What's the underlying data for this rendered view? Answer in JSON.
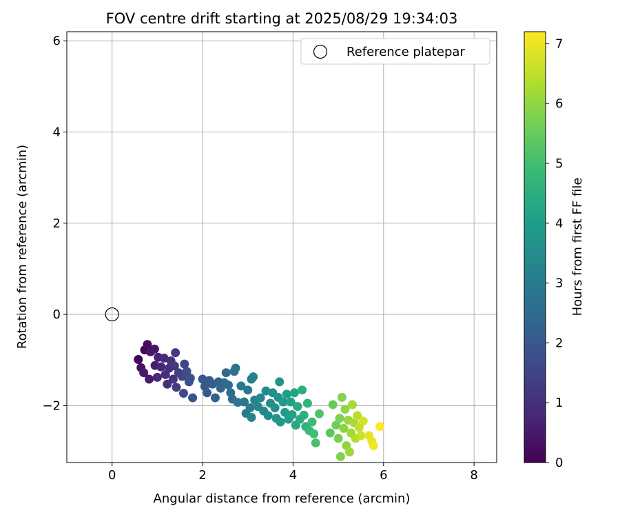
{
  "chart_data": {
    "type": "scatter",
    "title": "FOV centre drift starting at 2025/08/29 19:34:03",
    "xlabel": "Angular distance from reference (arcmin)",
    "ylabel": "Rotation from reference (arcmin)",
    "xlim": [
      -1.0,
      8.5
    ],
    "ylim": [
      -3.25,
      6.2
    ],
    "xticks": [
      0,
      2,
      4,
      6,
      8
    ],
    "xtick_labels": [
      "0",
      "2",
      "4",
      "6",
      "8"
    ],
    "yticks": [
      -2,
      0,
      2,
      4,
      6
    ],
    "ytick_labels": [
      "−2",
      "0",
      "2",
      "4",
      "6"
    ],
    "grid": true,
    "legend": {
      "position": "top-right",
      "label": "Reference platepar"
    },
    "reference_point": {
      "x": 0,
      "y": 0
    },
    "colorbar": {
      "label": "Hours from first FF file",
      "range": [
        0,
        7.2
      ],
      "ticks": [
        0,
        1,
        2,
        3,
        4,
        5,
        6,
        7
      ],
      "tick_labels": [
        "0",
        "1",
        "2",
        "3",
        "4",
        "5",
        "6",
        "7"
      ],
      "colormap": [
        "#440154",
        "#482878",
        "#3e4989",
        "#31688e",
        "#26828e",
        "#1f9e89",
        "#35b779",
        "#6ece58",
        "#b5de2b",
        "#fde725"
      ]
    },
    "series": [
      {
        "name": "FOV centre",
        "points": [
          {
            "x": 0.58,
            "y": -0.99,
            "c": 0.05
          },
          {
            "x": 0.72,
            "y": -0.78,
            "c": 0.15
          },
          {
            "x": 0.78,
            "y": -0.66,
            "c": 0.25
          },
          {
            "x": 0.64,
            "y": -1.17,
            "c": 0.3
          },
          {
            "x": 0.85,
            "y": -0.82,
            "c": 0.4
          },
          {
            "x": 0.94,
            "y": -0.76,
            "c": 0.45
          },
          {
            "x": 0.7,
            "y": -1.28,
            "c": 0.5
          },
          {
            "x": 0.82,
            "y": -1.42,
            "c": 0.55
          },
          {
            "x": 0.95,
            "y": -1.12,
            "c": 0.6
          },
          {
            "x": 1.02,
            "y": -0.94,
            "c": 0.7
          },
          {
            "x": 1.08,
            "y": -1.15,
            "c": 0.75
          },
          {
            "x": 1.0,
            "y": -1.38,
            "c": 0.8
          },
          {
            "x": 1.15,
            "y": -0.96,
            "c": 0.85
          },
          {
            "x": 1.18,
            "y": -1.32,
            "c": 0.9
          },
          {
            "x": 1.22,
            "y": -1.53,
            "c": 0.95
          },
          {
            "x": 1.26,
            "y": -1.18,
            "c": 1.0
          },
          {
            "x": 1.3,
            "y": -1.02,
            "c": 1.05
          },
          {
            "x": 1.35,
            "y": -1.42,
            "c": 1.1
          },
          {
            "x": 1.4,
            "y": -0.84,
            "c": 1.2
          },
          {
            "x": 1.38,
            "y": -1.13,
            "c": 1.25
          },
          {
            "x": 1.42,
            "y": -1.6,
            "c": 1.3
          },
          {
            "x": 1.47,
            "y": -1.28,
            "c": 1.4
          },
          {
            "x": 1.55,
            "y": -1.36,
            "c": 1.5
          },
          {
            "x": 1.6,
            "y": -1.09,
            "c": 1.55
          },
          {
            "x": 1.58,
            "y": -1.73,
            "c": 1.6
          },
          {
            "x": 1.65,
            "y": -1.25,
            "c": 1.7
          },
          {
            "x": 1.7,
            "y": -1.48,
            "c": 1.75
          },
          {
            "x": 1.73,
            "y": -1.4,
            "c": 1.8
          },
          {
            "x": 1.78,
            "y": -1.83,
            "c": 1.85
          },
          {
            "x": 2.0,
            "y": -1.42,
            "c": 1.95
          },
          {
            "x": 2.05,
            "y": -1.58,
            "c": 2.0
          },
          {
            "x": 2.1,
            "y": -1.72,
            "c": 2.05
          },
          {
            "x": 2.15,
            "y": -1.45,
            "c": 2.1
          },
          {
            "x": 2.22,
            "y": -1.53,
            "c": 2.15
          },
          {
            "x": 2.28,
            "y": -1.83,
            "c": 2.2
          },
          {
            "x": 2.35,
            "y": -1.48,
            "c": 2.25
          },
          {
            "x": 2.4,
            "y": -1.62,
            "c": 2.3
          },
          {
            "x": 2.48,
            "y": -1.5,
            "c": 2.35
          },
          {
            "x": 2.52,
            "y": -1.28,
            "c": 2.45
          },
          {
            "x": 2.57,
            "y": -1.55,
            "c": 2.5
          },
          {
            "x": 2.62,
            "y": -1.72,
            "c": 2.55
          },
          {
            "x": 2.66,
            "y": -1.86,
            "c": 2.6
          },
          {
            "x": 2.7,
            "y": -1.25,
            "c": 2.7
          },
          {
            "x": 2.73,
            "y": -1.18,
            "c": 2.75
          },
          {
            "x": 2.78,
            "y": -1.93,
            "c": 2.8
          },
          {
            "x": 2.85,
            "y": -1.57,
            "c": 2.85
          },
          {
            "x": 2.92,
            "y": -1.92,
            "c": 2.9
          },
          {
            "x": 2.96,
            "y": -2.17,
            "c": 2.95
          },
          {
            "x": 3.0,
            "y": -1.66,
            "c": 3.0
          },
          {
            "x": 3.05,
            "y": -2.05,
            "c": 3.05
          },
          {
            "x": 3.08,
            "y": -1.42,
            "c": 3.1
          },
          {
            "x": 3.12,
            "y": -1.37,
            "c": 3.15
          },
          {
            "x": 3.15,
            "y": -1.88,
            "c": 3.2
          },
          {
            "x": 3.08,
            "y": -2.26,
            "c": 3.25
          },
          {
            "x": 3.22,
            "y": -2.02,
            "c": 3.3
          },
          {
            "x": 3.28,
            "y": -1.83,
            "c": 3.35
          },
          {
            "x": 3.35,
            "y": -2.12,
            "c": 3.4
          },
          {
            "x": 3.4,
            "y": -1.68,
            "c": 3.45
          },
          {
            "x": 3.45,
            "y": -2.22,
            "c": 3.5
          },
          {
            "x": 3.5,
            "y": -1.95,
            "c": 3.55
          },
          {
            "x": 3.55,
            "y": -1.72,
            "c": 3.6
          },
          {
            "x": 3.6,
            "y": -2.05,
            "c": 3.65
          },
          {
            "x": 3.63,
            "y": -2.28,
            "c": 3.7
          },
          {
            "x": 3.67,
            "y": -1.82,
            "c": 3.75
          },
          {
            "x": 3.7,
            "y": -1.48,
            "c": 3.8
          },
          {
            "x": 3.72,
            "y": -2.36,
            "c": 3.85
          },
          {
            "x": 3.78,
            "y": -1.92,
            "c": 3.9
          },
          {
            "x": 3.82,
            "y": -2.15,
            "c": 3.95
          },
          {
            "x": 3.86,
            "y": -1.75,
            "c": 4.0
          },
          {
            "x": 3.9,
            "y": -2.3,
            "c": 4.05
          },
          {
            "x": 3.95,
            "y": -1.92,
            "c": 4.1
          },
          {
            "x": 3.98,
            "y": -2.2,
            "c": 4.15
          },
          {
            "x": 4.03,
            "y": -1.72,
            "c": 4.2
          },
          {
            "x": 4.06,
            "y": -2.43,
            "c": 4.3
          },
          {
            "x": 4.1,
            "y": -2.02,
            "c": 4.35
          },
          {
            "x": 4.15,
            "y": -2.3,
            "c": 4.4
          },
          {
            "x": 4.2,
            "y": -1.66,
            "c": 4.5
          },
          {
            "x": 4.24,
            "y": -2.21,
            "c": 4.55
          },
          {
            "x": 4.28,
            "y": -2.46,
            "c": 4.6
          },
          {
            "x": 4.32,
            "y": -1.95,
            "c": 4.7
          },
          {
            "x": 4.36,
            "y": -2.55,
            "c": 4.8
          },
          {
            "x": 4.42,
            "y": -2.36,
            "c": 4.9
          },
          {
            "x": 4.46,
            "y": -2.62,
            "c": 5.0
          },
          {
            "x": 4.5,
            "y": -2.82,
            "c": 5.1
          },
          {
            "x": 4.58,
            "y": -2.18,
            "c": 5.2
          },
          {
            "x": 4.82,
            "y": -2.6,
            "c": 5.35
          },
          {
            "x": 4.88,
            "y": -1.98,
            "c": 5.5
          },
          {
            "x": 4.95,
            "y": -2.43,
            "c": 5.6
          },
          {
            "x": 5.0,
            "y": -2.72,
            "c": 5.7
          },
          {
            "x": 5.03,
            "y": -2.28,
            "c": 5.75
          },
          {
            "x": 5.05,
            "y": -3.12,
            "c": 5.8
          },
          {
            "x": 5.08,
            "y": -1.82,
            "c": 5.85
          },
          {
            "x": 5.12,
            "y": -2.5,
            "c": 5.9
          },
          {
            "x": 5.15,
            "y": -2.08,
            "c": 5.95
          },
          {
            "x": 5.18,
            "y": -2.88,
            "c": 6.0
          },
          {
            "x": 5.22,
            "y": -2.32,
            "c": 6.05
          },
          {
            "x": 5.25,
            "y": -3.02,
            "c": 6.1
          },
          {
            "x": 5.28,
            "y": -2.6,
            "c": 6.15
          },
          {
            "x": 5.31,
            "y": -1.98,
            "c": 6.2
          },
          {
            "x": 5.35,
            "y": -2.38,
            "c": 6.25
          },
          {
            "x": 5.38,
            "y": -2.72,
            "c": 6.35
          },
          {
            "x": 5.42,
            "y": -2.22,
            "c": 6.45
          },
          {
            "x": 5.46,
            "y": -2.48,
            "c": 6.55
          },
          {
            "x": 5.5,
            "y": -2.66,
            "c": 6.65
          },
          {
            "x": 5.55,
            "y": -2.34,
            "c": 6.75
          },
          {
            "x": 5.68,
            "y": -2.66,
            "c": 6.9
          },
          {
            "x": 5.74,
            "y": -2.78,
            "c": 7.0
          },
          {
            "x": 5.78,
            "y": -2.88,
            "c": 7.1
          },
          {
            "x": 5.92,
            "y": -2.46,
            "c": 7.2
          }
        ]
      }
    ]
  }
}
